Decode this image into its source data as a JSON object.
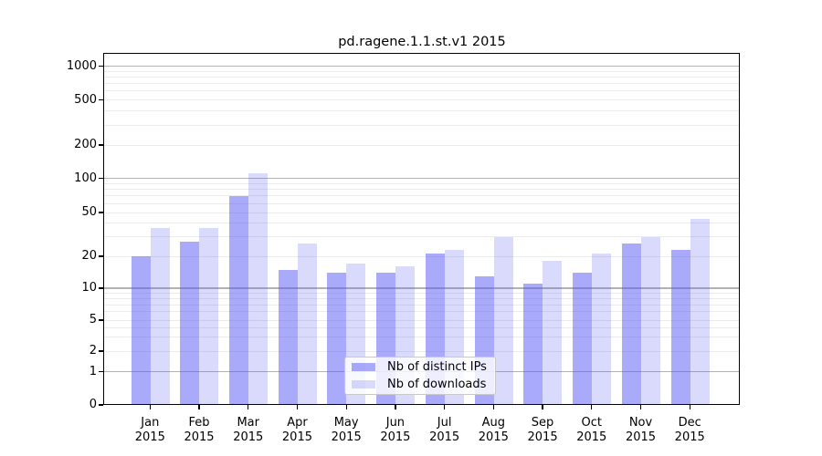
{
  "title": "pd.ragene.1.1.st.v1 2015",
  "chart_data": {
    "type": "bar",
    "title": "pd.ragene.1.1.st.v1 2015",
    "categories": [
      "Jan",
      "Feb",
      "Mar",
      "Apr",
      "May",
      "Jun",
      "Jul",
      "Aug",
      "Sep",
      "Oct",
      "Nov",
      "Dec"
    ],
    "x_tick_second_line": "2015",
    "series": [
      {
        "name": "Nb of distinct IPs",
        "values": [
          20,
          27,
          70,
          15,
          14,
          14,
          21,
          13,
          11,
          14,
          26,
          23
        ],
        "color": "rgba(85,85,245,0.5)"
      },
      {
        "name": "Nb of downloads",
        "values": [
          36,
          36,
          110,
          26,
          17,
          16,
          23,
          30,
          18,
          21,
          30,
          44
        ],
        "color": "rgba(85,85,245,0.22)"
      }
    ],
    "xlabel": "",
    "ylabel": "",
    "yscale": "log-like (symlog)",
    "y_tick_values": [
      0,
      1,
      2,
      5,
      10,
      20,
      50,
      100,
      200,
      500,
      1000
    ],
    "ylim": [
      0,
      1400
    ],
    "grid": true,
    "legend_position": "lower center inside plot",
    "colors": {
      "bar_dark": "#aaaaf5",
      "bar_light": "#d9d9f9",
      "major_grid": "#b2b2b2",
      "minor_grid": "#ebebeb",
      "axis": "#000000"
    }
  }
}
